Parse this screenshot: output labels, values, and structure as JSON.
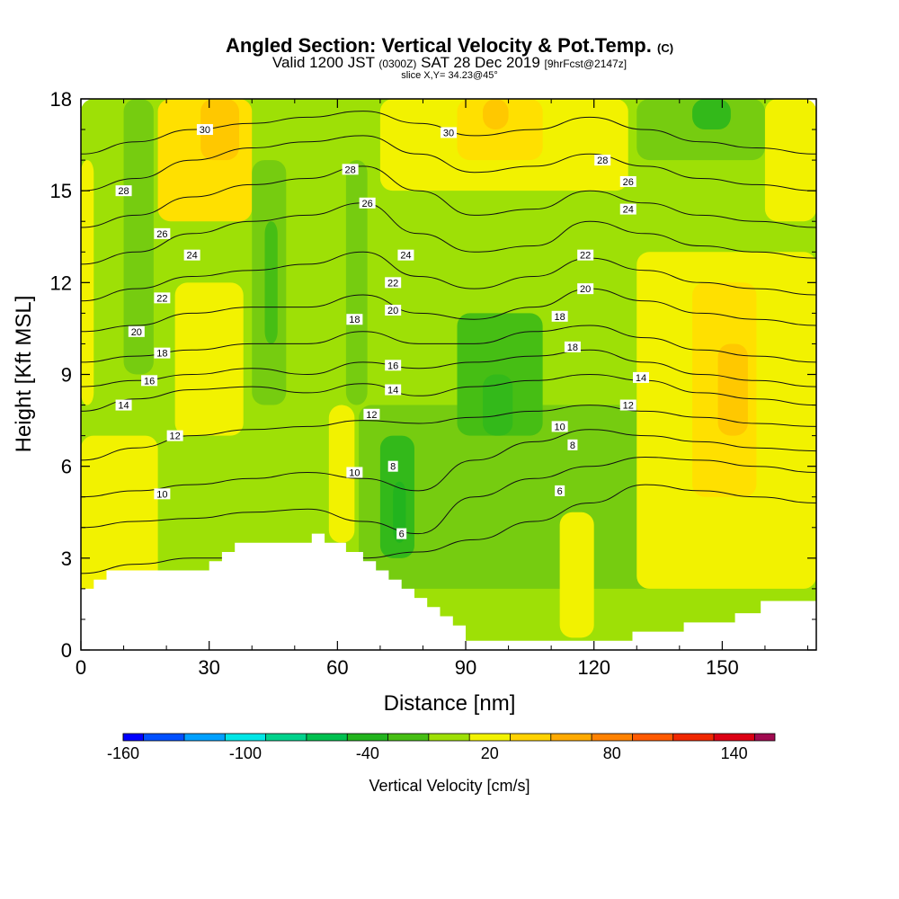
{
  "header": {
    "title": "Angled Section: Vertical Velocity & Pot.Temp.",
    "title_suffix": "(C)",
    "subtitle_valid": "Valid 1200 JST",
    "subtitle_z": "(0300Z)",
    "subtitle_date": "SAT 28 Dec 2019",
    "subtitle_fcst": "[9hrFcst@2147z]",
    "slice": "slice X,Y= 34.23@45°"
  },
  "chart_data": {
    "type": "heatmap",
    "title": "Angled Section: Vertical Velocity & Pot.Temp.",
    "xlabel": "Distance [nm]",
    "ylabel": "Height [Kft MSL]",
    "xlim": [
      0,
      172
    ],
    "ylim": [
      0,
      18
    ],
    "x_ticks": [
      "0",
      "30",
      "60",
      "90",
      "120",
      "150"
    ],
    "y_ticks": [
      "0",
      "3",
      "6",
      "9",
      "12",
      "15",
      "18"
    ],
    "terrain": {
      "x": [
        0,
        3,
        3,
        6,
        6,
        30,
        30,
        33,
        33,
        36,
        36,
        54,
        54,
        57,
        57,
        62,
        62,
        66,
        66,
        69,
        69,
        72,
        72,
        75,
        75,
        78,
        78,
        81,
        81,
        84,
        84,
        87,
        87,
        90,
        90,
        129,
        129,
        141,
        141,
        147,
        147,
        153,
        153,
        156,
        156,
        159,
        159,
        162,
        162,
        172
      ],
      "height_kft": [
        2.0,
        2.0,
        2.3,
        2.3,
        2.6,
        2.6,
        2.9,
        2.9,
        3.2,
        3.2,
        3.5,
        3.5,
        3.8,
        3.8,
        3.5,
        3.5,
        3.2,
        3.2,
        2.9,
        2.9,
        2.6,
        2.6,
        2.3,
        2.3,
        2.0,
        2.0,
        1.7,
        1.7,
        1.4,
        1.4,
        1.1,
        1.1,
        0.8,
        0.8,
        0.3,
        0.3,
        0.6,
        0.6,
        0.9,
        0.9,
        0.9,
        0.9,
        1.2,
        1.2,
        1.2,
        1.2,
        1.6,
        1.6,
        1.6,
        1.6
      ]
    },
    "vertical_velocity_field": [
      {
        "x0": 0,
        "x1": 172,
        "y0": 0,
        "y1": 18,
        "value": -10
      },
      {
        "x0": 0,
        "x1": 18,
        "y0": 0,
        "y1": 7,
        "value": 10
      },
      {
        "x0": 0,
        "x1": 3,
        "y0": 8,
        "y1": 16,
        "value": 10
      },
      {
        "x0": 18,
        "x1": 40,
        "y0": 14,
        "y1": 18,
        "value": 20
      },
      {
        "x0": 28,
        "x1": 37,
        "y0": 16,
        "y1": 18,
        "value": 30
      },
      {
        "x0": 10,
        "x1": 17,
        "y0": 9,
        "y1": 18,
        "value": -20
      },
      {
        "x0": 40,
        "x1": 48,
        "y0": 8,
        "y1": 16,
        "value": -20
      },
      {
        "x0": 43,
        "x1": 46,
        "y0": 10,
        "y1": 14,
        "value": -30
      },
      {
        "x0": 22,
        "x1": 38,
        "y0": 7,
        "y1": 12,
        "value": 10
      },
      {
        "x0": 58,
        "x1": 64,
        "y0": 3.5,
        "y1": 8,
        "value": 10
      },
      {
        "x0": 62,
        "x1": 67,
        "y0": 8,
        "y1": 16,
        "value": -20
      },
      {
        "x0": 65,
        "x1": 140,
        "y0": 2,
        "y1": 8,
        "value": -20
      },
      {
        "x0": 70,
        "x1": 78,
        "y0": 3,
        "y1": 7,
        "value": -40
      },
      {
        "x0": 73,
        "x1": 76,
        "y0": 3.5,
        "y1": 5.5,
        "value": -50
      },
      {
        "x0": 88,
        "x1": 108,
        "y0": 7,
        "y1": 11,
        "value": -30
      },
      {
        "x0": 94,
        "x1": 101,
        "y0": 7,
        "y1": 9,
        "value": -40
      },
      {
        "x0": 70,
        "x1": 128,
        "y0": 15,
        "y1": 18,
        "value": 10
      },
      {
        "x0": 88,
        "x1": 108,
        "y0": 16,
        "y1": 18,
        "value": 20
      },
      {
        "x0": 94,
        "x1": 100,
        "y0": 17,
        "y1": 18,
        "value": 30
      },
      {
        "x0": 112,
        "x1": 120,
        "y0": 0.4,
        "y1": 4.5,
        "value": 10
      },
      {
        "x0": 130,
        "x1": 172,
        "y0": 2,
        "y1": 13,
        "value": 10
      },
      {
        "x0": 143,
        "x1": 158,
        "y0": 5,
        "y1": 12,
        "value": 20
      },
      {
        "x0": 149,
        "x1": 156,
        "y0": 7,
        "y1": 10,
        "value": 30
      },
      {
        "x0": 130,
        "x1": 160,
        "y0": 16,
        "y1": 18,
        "value": -20
      },
      {
        "x0": 143,
        "x1": 152,
        "y0": 17,
        "y1": 18,
        "value": -40
      },
      {
        "x0": 160,
        "x1": 172,
        "y0": 14,
        "y1": 18,
        "value": 10
      }
    ],
    "potential_temperature_contours": [
      {
        "value": 6,
        "label": "6",
        "height_kft": [
          2.5,
          2.8,
          3.0,
          3.0,
          2.9,
          3.0,
          3.2,
          3.6,
          4.2,
          4.8,
          5.4,
          5.2,
          5.0,
          4.8
        ]
      },
      {
        "value": 8,
        "label": "8",
        "height_kft": [
          4.0,
          4.2,
          4.3,
          4.5,
          4.6,
          4.2,
          3.8,
          5.0,
          5.6,
          6.0,
          6.3,
          6.2,
          6.0,
          5.8
        ]
      },
      {
        "value": 10,
        "label": "10",
        "height_kft": [
          5.0,
          5.2,
          5.4,
          5.6,
          5.8,
          5.6,
          5.2,
          6.2,
          6.8,
          7.2,
          7.0,
          6.8,
          6.6,
          6.5
        ]
      },
      {
        "value": 12,
        "label": "12",
        "height_kft": [
          6.2,
          6.6,
          7.0,
          7.2,
          7.3,
          7.5,
          7.4,
          7.6,
          7.8,
          8.0,
          7.8,
          7.6,
          7.4,
          7.3
        ]
      },
      {
        "value": 14,
        "label": "14",
        "height_kft": [
          7.8,
          8.2,
          8.5,
          8.6,
          8.4,
          8.7,
          8.3,
          8.6,
          8.8,
          9.0,
          8.8,
          8.4,
          8.2,
          8.0
        ]
      },
      {
        "value": 16,
        "label": "16",
        "height_kft": [
          8.6,
          8.8,
          9.0,
          9.2,
          9.0,
          9.4,
          9.2,
          9.4,
          9.6,
          9.8,
          9.4,
          9.0,
          8.8,
          8.6
        ]
      },
      {
        "value": 18,
        "label": "18",
        "height_kft": [
          9.4,
          9.6,
          9.8,
          10.0,
          10.0,
          10.4,
          10.0,
          10.0,
          10.4,
          10.6,
          10.2,
          9.8,
          9.6,
          9.4
        ]
      },
      {
        "value": 20,
        "label": "20",
        "height_kft": [
          10.4,
          10.6,
          11.0,
          11.2,
          11.2,
          11.6,
          11.0,
          10.8,
          11.2,
          11.8,
          11.4,
          11.0,
          10.8,
          10.6
        ]
      },
      {
        "value": 22,
        "label": "22",
        "height_kft": [
          11.4,
          11.8,
          12.2,
          12.4,
          12.6,
          13.0,
          12.2,
          11.8,
          12.2,
          12.8,
          12.4,
          12.0,
          11.8,
          11.6
        ]
      },
      {
        "value": 24,
        "label": "24",
        "height_kft": [
          12.6,
          13.0,
          13.6,
          14.0,
          14.2,
          14.6,
          13.6,
          13.0,
          13.2,
          14.0,
          13.6,
          13.2,
          13.0,
          12.8
        ]
      },
      {
        "value": 26,
        "label": "26",
        "height_kft": [
          13.8,
          14.2,
          14.8,
          15.2,
          15.4,
          15.8,
          15.0,
          14.2,
          14.4,
          15.0,
          14.6,
          14.2,
          14.0,
          13.8
        ]
      },
      {
        "value": 28,
        "label": "28",
        "height_kft": [
          15.0,
          15.4,
          16.0,
          16.4,
          16.6,
          16.8,
          16.2,
          15.6,
          15.8,
          16.2,
          15.8,
          15.4,
          15.2,
          15.0
        ]
      },
      {
        "value": 30,
        "label": "30",
        "height_kft": [
          16.2,
          16.6,
          17.0,
          17.2,
          17.4,
          17.6,
          17.2,
          16.8,
          17.0,
          17.4,
          17.0,
          16.6,
          16.4,
          16.2
        ]
      }
    ],
    "contour_x": [
      0,
      13,
      26,
      40,
      53,
      66,
      79,
      92,
      106,
      119,
      132,
      145,
      158,
      172
    ],
    "contour_labels": [
      {
        "text": "30",
        "x": 29,
        "y": 17.0
      },
      {
        "text": "30",
        "x": 86,
        "y": 16.9
      },
      {
        "text": "28",
        "x": 10,
        "y": 15.0
      },
      {
        "text": "28",
        "x": 63,
        "y": 15.7
      },
      {
        "text": "28",
        "x": 122,
        "y": 16.0
      },
      {
        "text": "26",
        "x": 19,
        "y": 13.6
      },
      {
        "text": "26",
        "x": 67,
        "y": 14.6
      },
      {
        "text": "26",
        "x": 128,
        "y": 15.3
      },
      {
        "text": "24",
        "x": 26,
        "y": 12.9
      },
      {
        "text": "24",
        "x": 76,
        "y": 12.9
      },
      {
        "text": "24",
        "x": 128,
        "y": 14.4
      },
      {
        "text": "22",
        "x": 19,
        "y": 11.5
      },
      {
        "text": "22",
        "x": 73,
        "y": 12.0
      },
      {
        "text": "22",
        "x": 118,
        "y": 12.9
      },
      {
        "text": "20",
        "x": 13,
        "y": 10.4
      },
      {
        "text": "20",
        "x": 73,
        "y": 11.1
      },
      {
        "text": "20",
        "x": 118,
        "y": 11.8
      },
      {
        "text": "18",
        "x": 19,
        "y": 9.7
      },
      {
        "text": "18",
        "x": 64,
        "y": 10.8
      },
      {
        "text": "18",
        "x": 112,
        "y": 10.9
      },
      {
        "text": "18",
        "x": 115,
        "y": 9.9
      },
      {
        "text": "16",
        "x": 16,
        "y": 8.8
      },
      {
        "text": "16",
        "x": 73,
        "y": 9.3
      },
      {
        "text": "14",
        "x": 10,
        "y": 8.0
      },
      {
        "text": "14",
        "x": 73,
        "y": 8.5
      },
      {
        "text": "14",
        "x": 131,
        "y": 8.9
      },
      {
        "text": "12",
        "x": 22,
        "y": 7.0
      },
      {
        "text": "12",
        "x": 68,
        "y": 7.7
      },
      {
        "text": "12",
        "x": 128,
        "y": 8.0
      },
      {
        "text": "10",
        "x": 19,
        "y": 5.1
      },
      {
        "text": "10",
        "x": 64,
        "y": 5.8
      },
      {
        "text": "10",
        "x": 112,
        "y": 7.3
      },
      {
        "text": "8",
        "x": 73,
        "y": 6.0
      },
      {
        "text": "8",
        "x": 115,
        "y": 6.7
      },
      {
        "text": "6",
        "x": 112,
        "y": 5.2
      },
      {
        "text": "6",
        "x": 75,
        "y": 3.8
      }
    ]
  },
  "colorbar": {
    "title": "Vertical Velocity [cm/s]",
    "tick_labels": [
      "-160",
      "-100",
      "-40",
      "20",
      "80",
      "140"
    ],
    "levels": [
      -160,
      -150,
      -130,
      -110,
      -90,
      -70,
      -50,
      -30,
      -10,
      10,
      30,
      50,
      70,
      90,
      110,
      130,
      150,
      160
    ],
    "colors": [
      "#0000ff",
      "#0050ff",
      "#00a0ff",
      "#00e6e6",
      "#00d28c",
      "#00c050",
      "#22b41e",
      "#46be14",
      "#9ee006",
      "#f2f200",
      "#ffd200",
      "#ffaa00",
      "#ff8200",
      "#ff5a00",
      "#f02800",
      "#dc0014",
      "#a00a50",
      "#640a96"
    ],
    "value_colors": {
      "-50": "#22b41e",
      "-40": "#33b91a",
      "-30": "#46be14",
      "-20": "#76cc10",
      "-10": "#9ee006",
      "10": "#f2f200",
      "20": "#ffe000",
      "30": "#ffc800"
    }
  }
}
